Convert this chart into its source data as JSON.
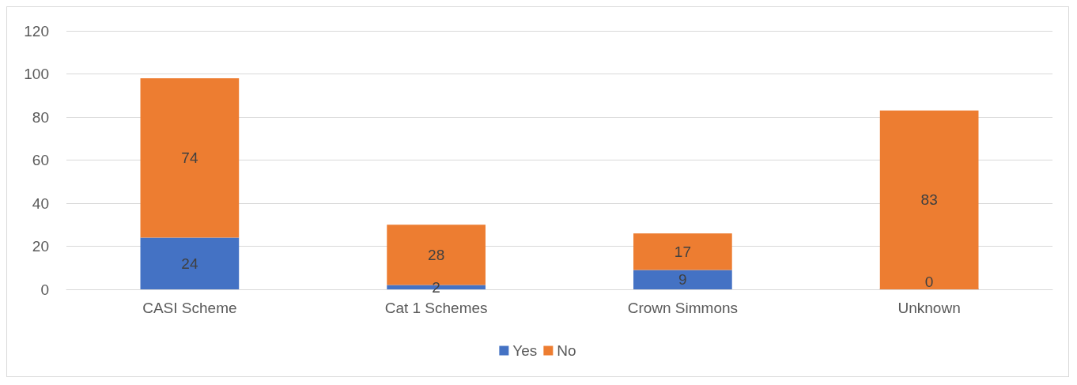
{
  "chart_data": {
    "type": "bar",
    "stacked": true,
    "categories": [
      "CASI Scheme",
      "Cat 1 Schemes",
      "Crown Simmons",
      "Unknown"
    ],
    "series": [
      {
        "name": "Yes",
        "color": "#4472c4",
        "values": [
          24,
          2,
          9,
          0
        ]
      },
      {
        "name": "No",
        "color": "#ed7d31",
        "values": [
          74,
          28,
          17,
          83
        ]
      }
    ],
    "ylim": [
      0,
      120
    ],
    "yticks": [
      0,
      20,
      40,
      60,
      80,
      100,
      120
    ],
    "grid": "y",
    "legend": "bottom",
    "data_labels": true
  }
}
